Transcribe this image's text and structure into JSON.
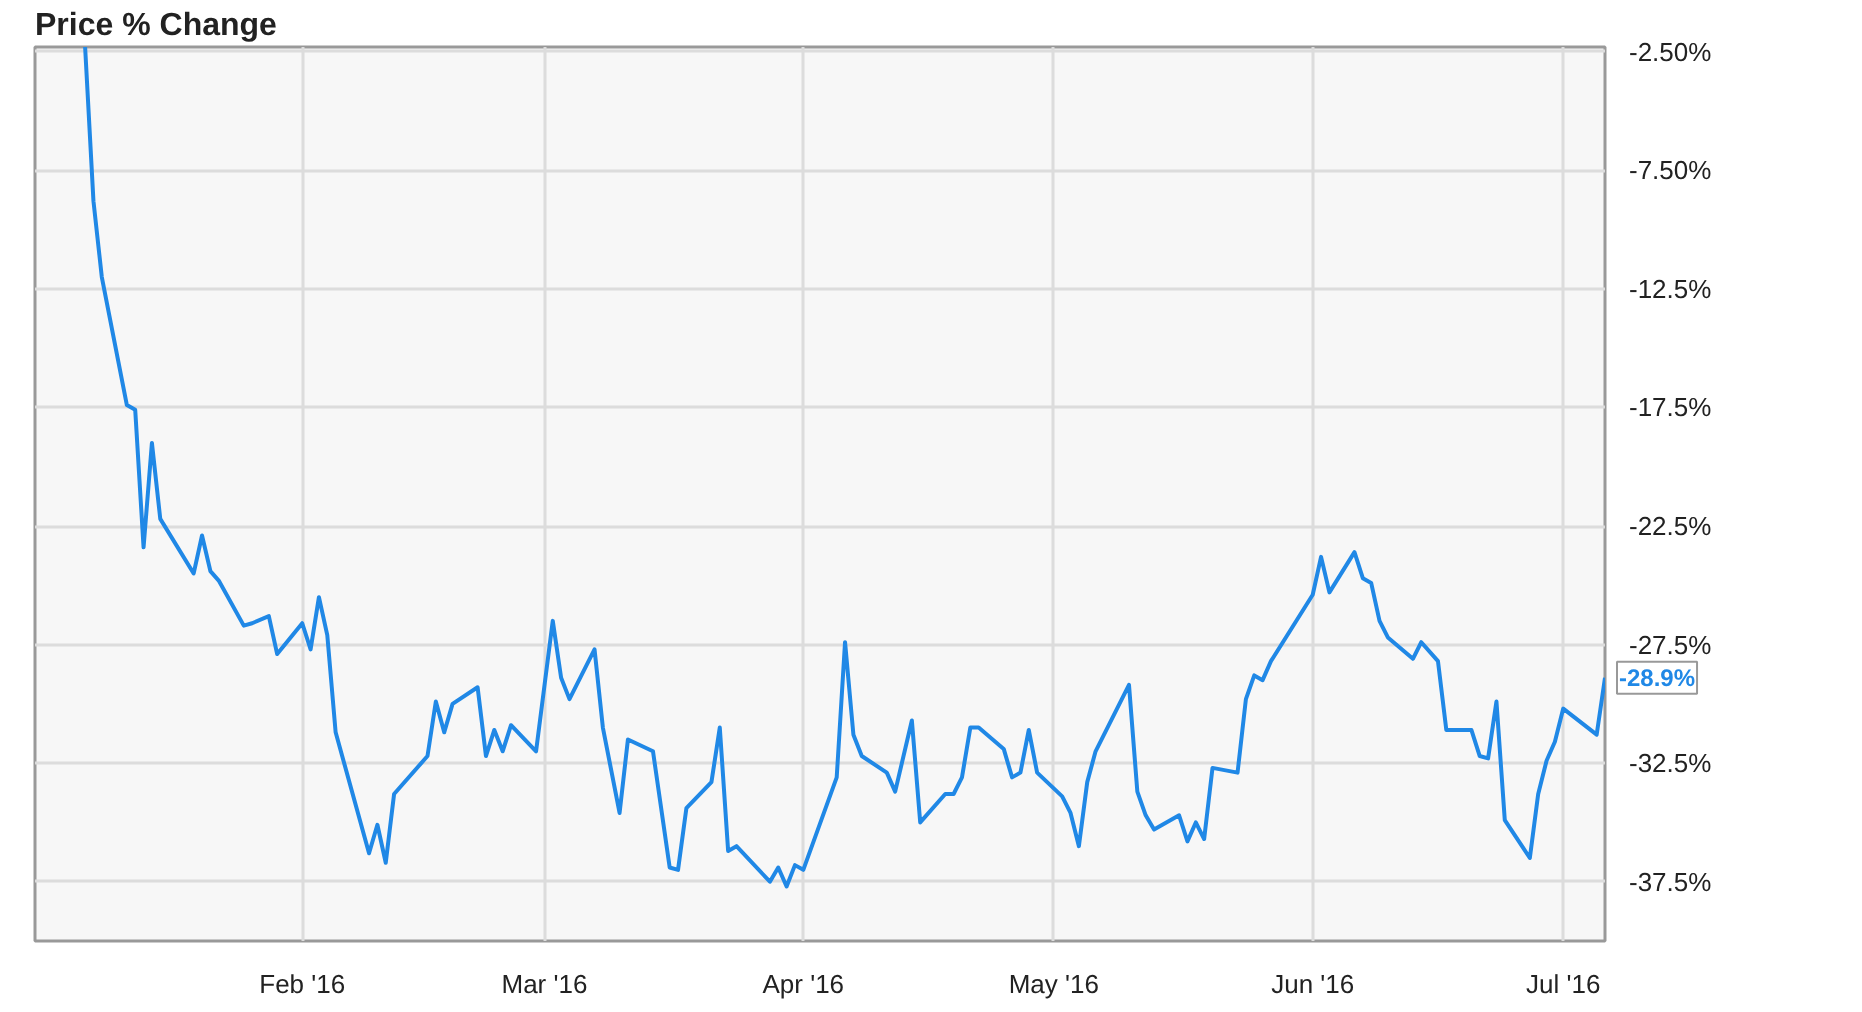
{
  "chart_data": {
    "type": "line",
    "title": "Price % Change",
    "x": [
      "2016-01-06",
      "2016-01-07",
      "2016-01-08",
      "2016-01-11",
      "2016-01-12",
      "2016-01-13",
      "2016-01-14",
      "2016-01-15",
      "2016-01-19",
      "2016-01-20",
      "2016-01-21",
      "2016-01-22",
      "2016-01-25",
      "2016-01-26",
      "2016-01-28",
      "2016-01-29",
      "2016-02-01",
      "2016-02-02",
      "2016-02-03",
      "2016-02-04",
      "2016-02-05",
      "2016-02-09",
      "2016-02-10",
      "2016-02-11",
      "2016-02-12",
      "2016-02-16",
      "2016-02-17",
      "2016-02-18",
      "2016-02-19",
      "2016-02-22",
      "2016-02-23",
      "2016-02-24",
      "2016-02-25",
      "2016-02-26",
      "2016-02-29",
      "2016-03-02",
      "2016-03-03",
      "2016-03-04",
      "2016-03-07",
      "2016-03-08",
      "2016-03-10",
      "2016-03-11",
      "2016-03-14",
      "2016-03-16",
      "2016-03-17",
      "2016-03-18",
      "2016-03-21",
      "2016-03-22",
      "2016-03-23",
      "2016-03-24",
      "2016-03-28",
      "2016-03-29",
      "2016-03-30",
      "2016-03-31",
      "2016-04-01",
      "2016-04-05",
      "2016-04-06",
      "2016-04-07",
      "2016-04-08",
      "2016-04-11",
      "2016-04-12",
      "2016-04-14",
      "2016-04-15",
      "2016-04-18",
      "2016-04-19",
      "2016-04-20",
      "2016-04-21",
      "2016-04-22",
      "2016-04-25",
      "2016-04-26",
      "2016-04-27",
      "2016-04-28",
      "2016-04-29",
      "2016-05-02",
      "2016-05-03",
      "2016-05-04",
      "2016-05-05",
      "2016-05-06",
      "2016-05-10",
      "2016-05-11",
      "2016-05-12",
      "2016-05-13",
      "2016-05-16",
      "2016-05-17",
      "2016-05-18",
      "2016-05-19",
      "2016-05-20",
      "2016-05-23",
      "2016-05-24",
      "2016-05-25",
      "2016-05-26",
      "2016-05-27",
      "2016-06-01",
      "2016-06-02",
      "2016-06-03",
      "2016-06-06",
      "2016-06-07",
      "2016-06-08",
      "2016-06-09",
      "2016-06-10",
      "2016-06-13",
      "2016-06-14",
      "2016-06-16",
      "2016-06-17",
      "2016-06-20",
      "2016-06-21",
      "2016-06-22",
      "2016-06-23",
      "2016-06-24",
      "2016-06-27",
      "2016-06-28",
      "2016-06-29",
      "2016-06-30",
      "2016-07-01",
      "2016-07-05",
      "2016-07-06"
    ],
    "series": [
      {
        "color": "#2088e6",
        "values": [
          -2.3,
          -8.8,
          -12.0,
          -17.4,
          -17.6,
          -23.4,
          -19.0,
          -22.2,
          -24.5,
          -22.9,
          -24.4,
          -24.8,
          -26.7,
          -26.6,
          -26.3,
          -27.9,
          -26.6,
          -27.7,
          -25.5,
          -27.1,
          -31.2,
          -36.3,
          -35.1,
          -36.7,
          -33.8,
          -32.2,
          -29.9,
          -31.2,
          -30.0,
          -29.3,
          -32.2,
          -31.1,
          -32.0,
          -30.9,
          -32.0,
          -26.5,
          -28.9,
          -29.8,
          -27.7,
          -31.0,
          -34.6,
          -31.5,
          -32.0,
          -36.9,
          -37.0,
          -34.4,
          -33.3,
          -31.0,
          -36.2,
          -36.0,
          -37.5,
          -36.9,
          -37.7,
          -36.8,
          -37.0,
          -33.1,
          -27.4,
          -31.3,
          -32.2,
          -32.9,
          -33.7,
          -30.7,
          -35.0,
          -33.8,
          -33.8,
          -33.1,
          -31.0,
          -31.0,
          -31.9,
          -33.1,
          -32.9,
          -31.1,
          -32.9,
          -33.9,
          -34.6,
          -36.0,
          -33.3,
          -32.0,
          -29.2,
          -33.7,
          -34.7,
          -35.3,
          -34.7,
          -35.8,
          -35.0,
          -35.7,
          -32.7,
          -32.9,
          -29.8,
          -28.8,
          -29.0,
          -28.2,
          -25.4,
          -23.8,
          -25.3,
          -23.6,
          -24.7,
          -24.9,
          -26.5,
          -27.2,
          -28.1,
          -27.4,
          -28.2,
          -31.1,
          -31.1,
          -32.2,
          -32.3,
          -29.9,
          -34.9,
          -36.5,
          -33.8,
          -32.4,
          -31.6,
          -30.2,
          -31.3,
          -28.9
        ]
      }
    ],
    "xlim": [
      "2015-12-31",
      "2016-07-06"
    ],
    "ylim": [
      -40,
      -2.3
    ],
    "xticks": [
      {
        "value": "2016-02-01",
        "label": "Feb '16"
      },
      {
        "value": "2016-03-01",
        "label": "Mar '16"
      },
      {
        "value": "2016-04-01",
        "label": "Apr '16"
      },
      {
        "value": "2016-05-01",
        "label": "May '16"
      },
      {
        "value": "2016-06-01",
        "label": "Jun '16"
      },
      {
        "value": "2016-07-01",
        "label": "Jul '16"
      }
    ],
    "yticks": [
      {
        "value": -2.5,
        "label": "-2.50%"
      },
      {
        "value": -7.5,
        "label": "-7.50%"
      },
      {
        "value": -12.5,
        "label": "-12.5%"
      },
      {
        "value": -17.5,
        "label": "-17.5%"
      },
      {
        "value": -22.5,
        "label": "-22.5%"
      },
      {
        "value": -27.5,
        "label": "-27.5%"
      },
      {
        "value": -32.5,
        "label": "-32.5%"
      },
      {
        "value": -37.5,
        "label": "-37.5%"
      }
    ],
    "grid": true,
    "annotations": [
      {
        "text": "-28.9%",
        "x": "2016-07-06",
        "y": -28.9
      }
    ]
  }
}
